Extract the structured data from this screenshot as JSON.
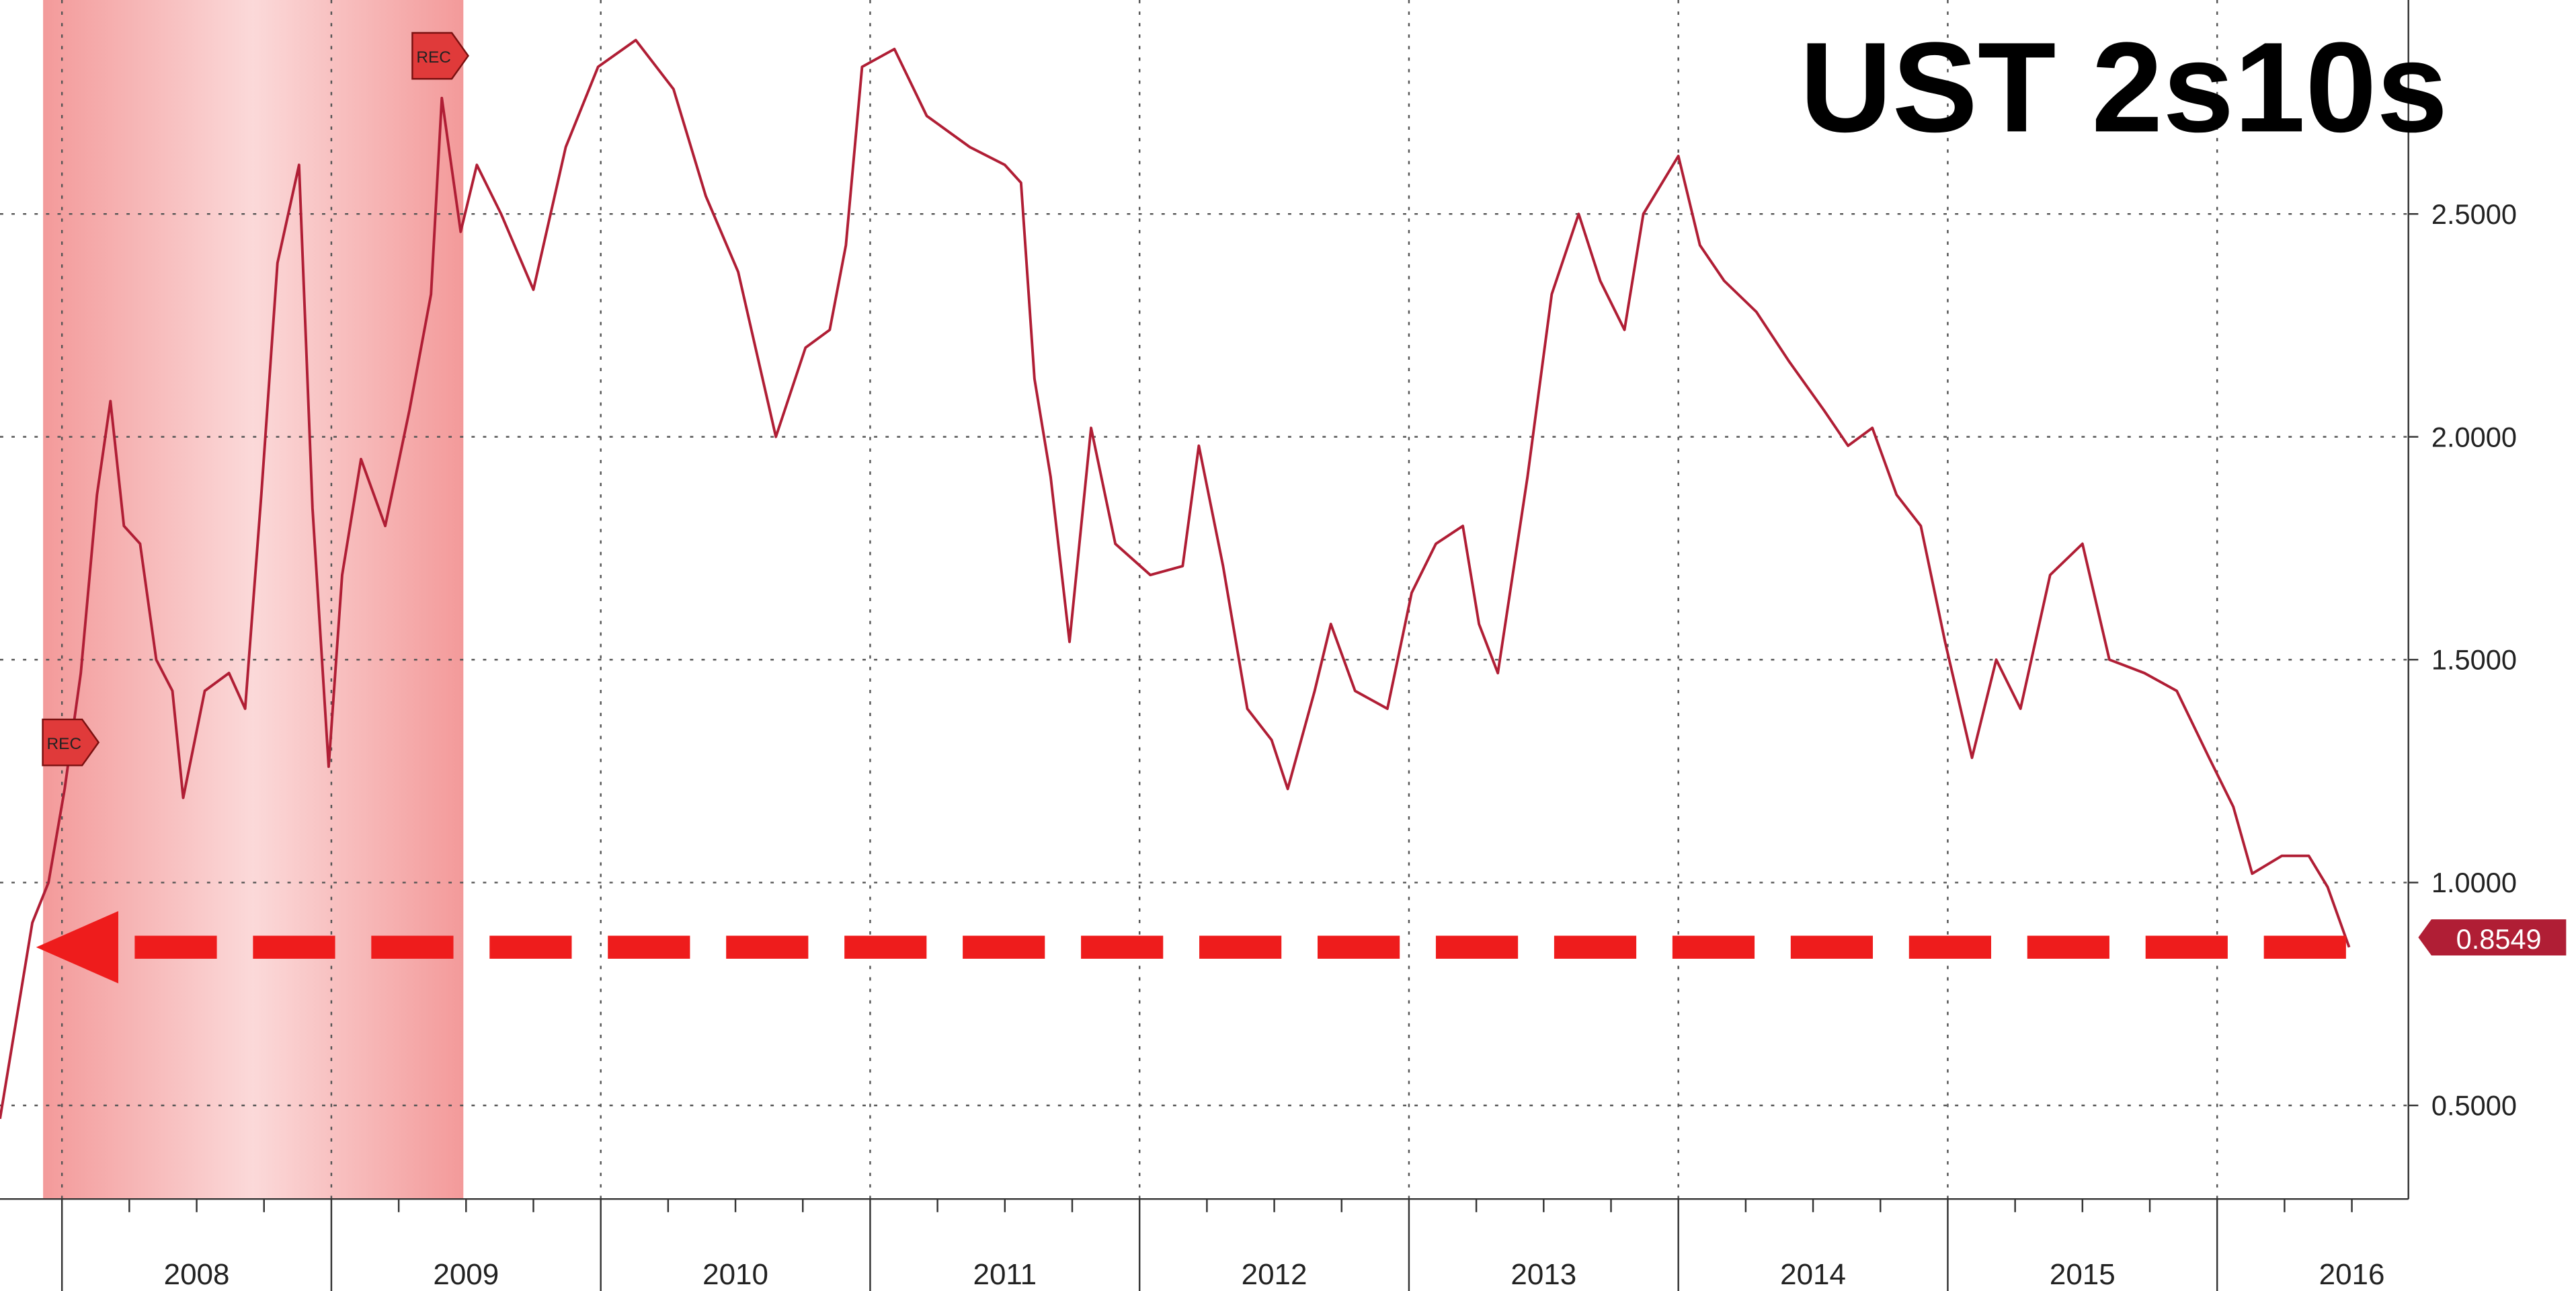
{
  "chart_data": {
    "type": "line",
    "title": "UST 2s10s",
    "color": "#b01e35",
    "x": [
      2007.77,
      2007.83,
      2007.89,
      2007.95,
      2008.01,
      2008.07,
      2008.13,
      2008.18,
      2008.23,
      2008.29,
      2008.35,
      2008.41,
      2008.45,
      2008.53,
      2008.62,
      2008.68,
      2008.74,
      2008.8,
      2008.88,
      2008.93,
      2008.99,
      2009.04,
      2009.11,
      2009.2,
      2009.29,
      2009.37,
      2009.41,
      2009.48,
      2009.54,
      2009.63,
      2009.75,
      2009.87,
      2009.99,
      2010.13,
      2010.27,
      2010.39,
      2010.51,
      2010.65,
      2010.76,
      2010.85,
      2010.91,
      2010.97,
      2011.09,
      2011.21,
      2011.37,
      2011.5,
      2011.56,
      2011.61,
      2011.67,
      2011.74,
      2011.82,
      2011.91,
      2012.04,
      2012.16,
      2012.22,
      2012.31,
      2012.4,
      2012.49,
      2012.55,
      2012.65,
      2012.71,
      2012.8,
      2012.92,
      2013.01,
      2013.1,
      2013.2,
      2013.26,
      2013.33,
      2013.44,
      2013.53,
      2013.63,
      2013.71,
      2013.8,
      2013.87,
      2014.0,
      2014.08,
      2014.17,
      2014.29,
      2014.41,
      2014.54,
      2014.63,
      2014.72,
      2014.81,
      2014.9,
      2014.99,
      2015.09,
      2015.18,
      2015.27,
      2015.38,
      2015.5,
      2015.6,
      2015.73,
      2015.85,
      2015.97,
      2016.06,
      2016.13,
      2016.24,
      2016.34,
      2016.41,
      2016.49
    ],
    "values": [
      0.47,
      0.69,
      0.91,
      1.0,
      1.21,
      1.47,
      1.87,
      2.08,
      1.8,
      1.76,
      1.5,
      1.43,
      1.19,
      1.43,
      1.47,
      1.39,
      1.87,
      2.39,
      2.61,
      1.84,
      1.26,
      1.69,
      1.95,
      1.8,
      2.06,
      2.32,
      2.76,
      2.46,
      2.61,
      2.5,
      2.33,
      2.65,
      2.83,
      2.89,
      2.78,
      2.54,
      2.37,
      2.0,
      2.2,
      2.24,
      2.43,
      2.83,
      2.87,
      2.72,
      2.65,
      2.61,
      2.57,
      2.13,
      1.91,
      1.54,
      2.02,
      1.76,
      1.69,
      1.71,
      1.98,
      1.71,
      1.39,
      1.32,
      1.21,
      1.43,
      1.58,
      1.43,
      1.39,
      1.65,
      1.76,
      1.8,
      1.58,
      1.47,
      1.91,
      2.32,
      2.5,
      2.35,
      2.24,
      2.5,
      2.63,
      2.43,
      2.35,
      2.28,
      2.17,
      2.06,
      1.98,
      2.02,
      1.87,
      1.8,
      1.54,
      1.28,
      1.5,
      1.39,
      1.69,
      1.76,
      1.5,
      1.47,
      1.43,
      1.28,
      1.17,
      1.02,
      1.06,
      1.06,
      0.99,
      0.8549
    ],
    "last_value": 0.8549,
    "xlim": [
      2007.77,
      2016.71
    ],
    "xticks": [
      {
        "value": 2008.5,
        "label": "2008"
      },
      {
        "value": 2009.5,
        "label": "2009"
      },
      {
        "value": 2010.5,
        "label": "2010"
      },
      {
        "value": 2011.5,
        "label": "2011"
      },
      {
        "value": 2012.5,
        "label": "2012"
      },
      {
        "value": 2013.5,
        "label": "2013"
      },
      {
        "value": 2014.5,
        "label": "2014"
      },
      {
        "value": 2015.5,
        "label": "2015"
      },
      {
        "value": 2016.5,
        "label": "2016"
      }
    ],
    "ylim": [
      0.29,
      2.98
    ],
    "yticks": [
      {
        "value": 0.5,
        "label": "0.5000"
      },
      {
        "value": 1.0,
        "label": "1.0000"
      },
      {
        "value": 1.5,
        "label": "1.5000"
      },
      {
        "value": 2.0,
        "label": "2.0000"
      },
      {
        "value": 2.5,
        "label": "2.5000"
      }
    ],
    "grid": true,
    "shaded_region": [
      2007.93,
      2009.49
    ],
    "annotations": [
      "REC",
      "REC"
    ]
  }
}
